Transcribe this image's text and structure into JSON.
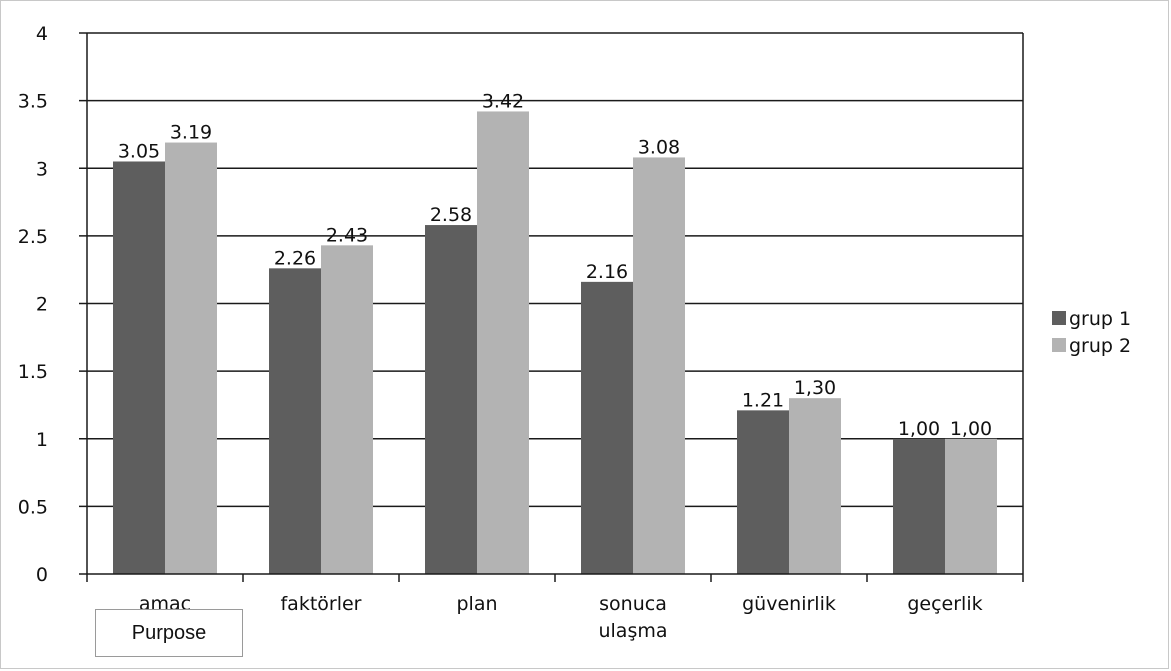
{
  "chart_data": {
    "type": "bar",
    "categories": [
      "amaç",
      "faktörler",
      "plan",
      "sonuca ulaşma",
      "güvenirlik",
      "geçerlik"
    ],
    "series": [
      {
        "name": "grup 1",
        "values": [
          3.05,
          2.26,
          2.58,
          2.16,
          1.21,
          1.0
        ],
        "labels": [
          "3.05",
          "2.26",
          "2.58",
          "2.16",
          "1.21",
          "1,00"
        ],
        "color": "#5e5e5e"
      },
      {
        "name": "grup 2",
        "values": [
          3.19,
          2.43,
          3.42,
          3.08,
          1.3,
          1.0
        ],
        "labels": [
          "3.19",
          "2.43",
          "3.42",
          "3.08",
          "1,30",
          "1,00"
        ],
        "color": "#b3b3b3"
      }
    ],
    "y_ticks": [
      "0",
      "0.5",
      "1",
      "1.5",
      "2",
      "2.5",
      "3",
      "3.5",
      "4"
    ],
    "ylim": [
      0,
      4
    ],
    "grid": true,
    "legend_position": "right"
  },
  "tooltip": {
    "text": "Purpose"
  }
}
